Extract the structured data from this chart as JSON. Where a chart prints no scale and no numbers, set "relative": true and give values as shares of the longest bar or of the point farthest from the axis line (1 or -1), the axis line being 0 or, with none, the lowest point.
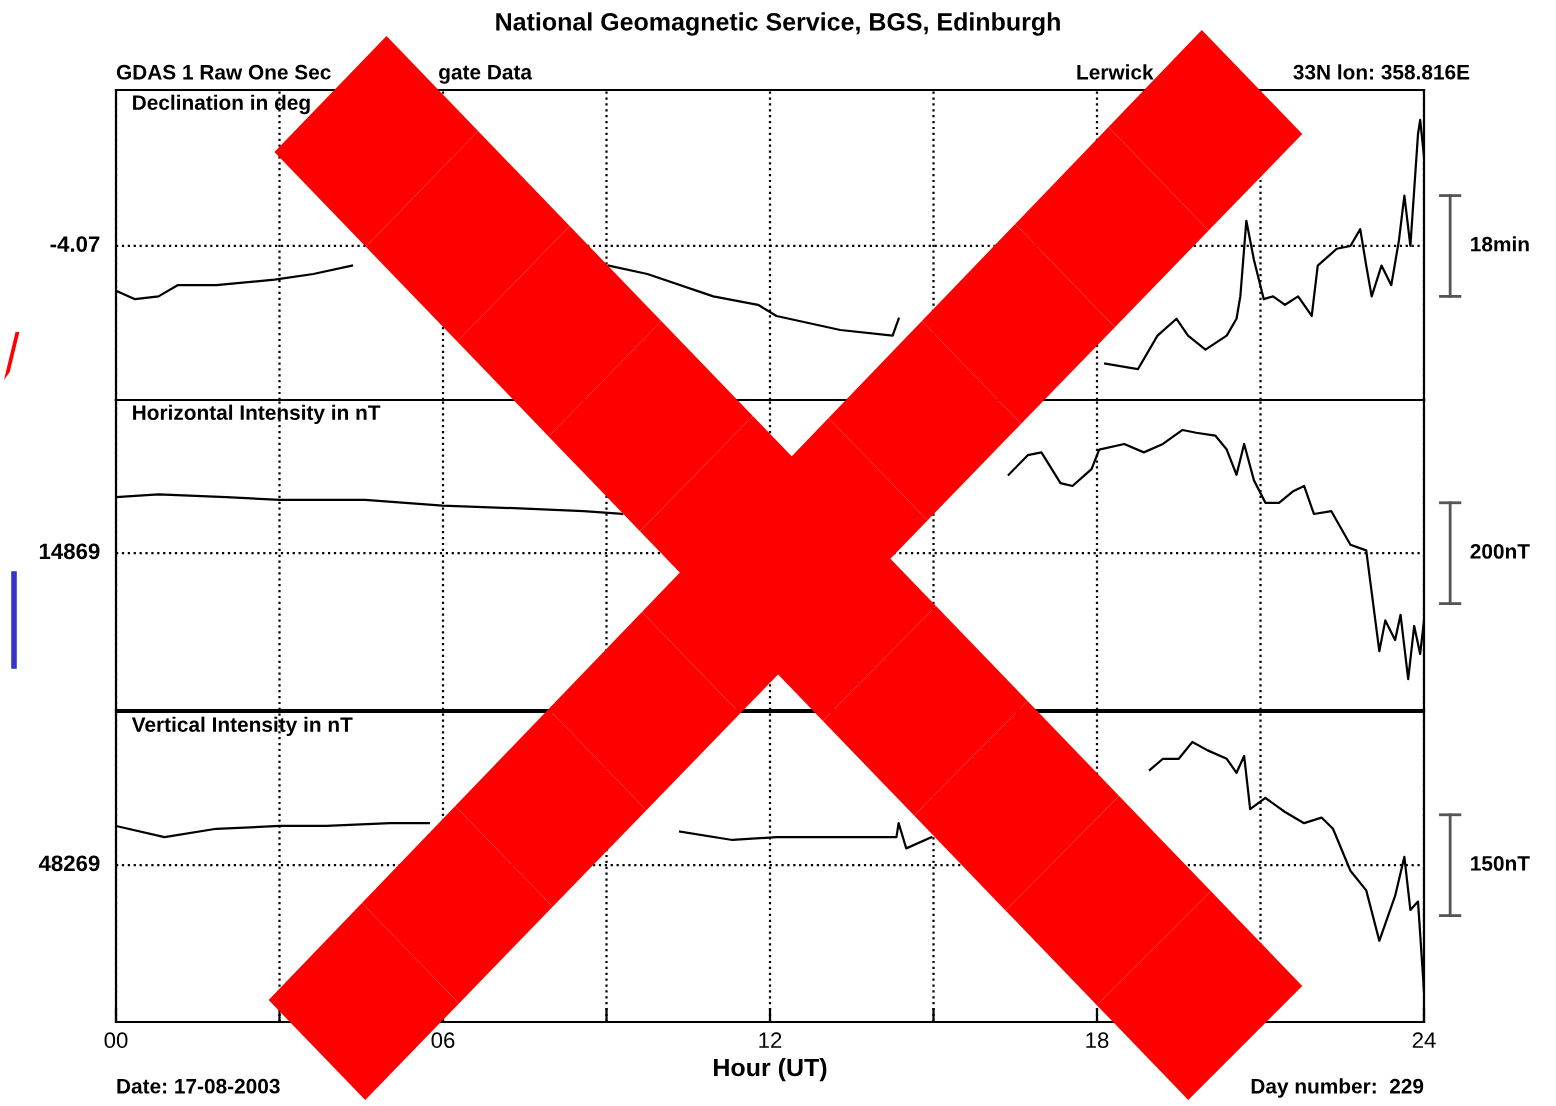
{
  "chart_data": [
    {
      "type": "line",
      "relative": true,
      "title": "National Geomagnetic Service, BGS, Edinburgh",
      "ylabel": "Declination in deg",
      "annotations": [
        "18min",
        "-4.07",
        "GDAS 1 Raw One Sec",
        "gate Data",
        "Lerwick",
        "33N lon: 358.816E"
      ],
      "xlim": [
        0,
        24
      ],
      "xticks": [
        {
          "value": 0,
          "label": null
        },
        {
          "value": 3,
          "label": null
        },
        {
          "value": 6,
          "label": null
        },
        {
          "value": 9,
          "label": null
        },
        {
          "value": 12,
          "label": null
        },
        {
          "value": 15,
          "label": null
        },
        {
          "value": 18,
          "label": null
        },
        {
          "value": 21,
          "label": null
        },
        {
          "value": 24,
          "label": null
        }
      ],
      "tick_labels": false,
      "grid": "x",
      "legend": false,
      "ref_lines": [
        {
          "axis": "y",
          "value": 0.55,
          "color": "#000000",
          "line_style": "dotted"
        }
      ],
      "series": [
        {
          "color": "#000000",
          "x": [
            0,
            0.35,
            0.78,
            1.13,
            1.84,
            2.91,
            3.62,
            4.33,
            4.93,
            7,
            9.04,
            9.75,
            10.96,
            11.78,
            12.12,
            13.29,
            14.25,
            14.36,
            16,
            17.8,
            18.15,
            18.75,
            19.11,
            19.46,
            19.67,
            19.99,
            20.38,
            20.56,
            20.63,
            20.74,
            20.88,
            21.06,
            21.23,
            21.45,
            21.69,
            21.94,
            22.05,
            22.4,
            22.65,
            22.83,
            22.94,
            23.04,
            23.22,
            23.4,
            23.54,
            23.64,
            23.75,
            23.89,
            23.93,
            24
          ],
          "values": [
            0.39,
            0.36,
            0.37,
            0.41,
            0.41,
            0.43,
            0.45,
            0.48,
            null,
            null,
            0.48,
            0.45,
            0.37,
            0.34,
            0.3,
            0.25,
            0.23,
            0.29,
            null,
            null,
            0.13,
            0.11,
            0.23,
            0.29,
            0.23,
            0.18,
            0.23,
            0.29,
            0.37,
            0.64,
            0.5,
            0.36,
            0.37,
            0.34,
            0.37,
            0.3,
            0.48,
            0.54,
            0.55,
            0.61,
            0.48,
            0.37,
            0.48,
            0.41,
            0.57,
            0.73,
            0.55,
            0.95,
            1,
            0.87
          ]
        }
      ]
    },
    {
      "type": "line",
      "relative": true,
      "ylabel": "Horizontal Intensity in nT",
      "annotations": [
        "200nT",
        "14869"
      ],
      "xlim": [
        0,
        24
      ],
      "xticks": [
        {
          "value": 0,
          "label": null
        },
        {
          "value": 3,
          "label": null
        },
        {
          "value": 6,
          "label": null
        },
        {
          "value": 9,
          "label": null
        },
        {
          "value": 12,
          "label": null
        },
        {
          "value": 15,
          "label": null
        },
        {
          "value": 18,
          "label": null
        },
        {
          "value": 21,
          "label": null
        },
        {
          "value": 24,
          "label": null
        }
      ],
      "tick_labels": false,
      "grid": "x",
      "legend": false,
      "ref_lines": [
        {
          "axis": "y",
          "value": 0.56,
          "color": "#000000",
          "line_style": "dotted"
        }
      ],
      "series": [
        {
          "color": "#000000",
          "x": [
            0,
            0.78,
            2.02,
            3.01,
            4.57,
            5.99,
            7.41,
            8.58,
            9.29,
            12,
            16.38,
            16.73,
            16.98,
            17.33,
            17.55,
            17.9,
            18.04,
            18.5,
            18.86,
            19.21,
            19.57,
            19.82,
            20.17,
            20.38,
            20.56,
            20.7,
            20.88,
            21.09,
            21.34,
            21.59,
            21.8,
            21.98,
            22.3,
            22.65,
            22.94,
            23.18,
            23.29,
            23.47,
            23.57,
            23.71,
            23.82,
            23.93,
            24
          ],
          "values": [
            0.76,
            0.77,
            0.76,
            0.75,
            0.75,
            0.73,
            0.72,
            0.71,
            0.7,
            null,
            0.84,
            0.91,
            0.92,
            0.81,
            0.8,
            0.86,
            0.93,
            0.95,
            0.92,
            0.95,
            1,
            0.99,
            0.98,
            0.93,
            0.84,
            0.95,
            0.82,
            0.74,
            0.74,
            0.78,
            0.8,
            0.7,
            0.71,
            0.59,
            0.57,
            0.21,
            0.32,
            0.25,
            0.34,
            0.11,
            0.3,
            0.2,
            0.32
          ]
        }
      ]
    },
    {
      "type": "line",
      "relative": true,
      "ylabel": "Vertical Intensity in nT",
      "xlabel": "Hour (UT)",
      "annotations": [
        "150nT",
        "48269",
        "Date: 17-08-2003",
        "Day number:  229"
      ],
      "xlim": [
        0,
        24
      ],
      "xticks": [
        {
          "value": 0,
          "label": "00"
        },
        {
          "value": 3,
          "label": null
        },
        {
          "value": 6,
          "label": "06"
        },
        {
          "value": 9,
          "label": null
        },
        {
          "value": 12,
          "label": "12"
        },
        {
          "value": 15,
          "label": null
        },
        {
          "value": 18,
          "label": "18"
        },
        {
          "value": 21,
          "label": null
        },
        {
          "value": 24,
          "label": "24"
        }
      ],
      "tick_labels": "x",
      "grid": "x",
      "legend": false,
      "ref_lines": [
        {
          "axis": "y",
          "value": 0.56,
          "color": "#000000",
          "line_style": "dotted"
        }
      ],
      "series": [
        {
          "color": "#000000",
          "x": [
            0,
            0.89,
            1.84,
            3.01,
            3.86,
            5.03,
            5.74,
            8,
            10.35,
            11.31,
            12.12,
            13.29,
            14.32,
            14.36,
            14.5,
            14.96,
            16.5,
            18.97,
            19.21,
            19.5,
            19.75,
            20.03,
            20.38,
            20.56,
            20.7,
            20.81,
            21.09,
            21.45,
            21.8,
            22.12,
            22.33,
            22.65,
            22.94,
            23.18,
            23.47,
            23.64,
            23.75,
            23.89,
            24
          ],
          "values": [
            0.7,
            0.66,
            0.69,
            0.7,
            0.7,
            0.71,
            0.71,
            null,
            0.68,
            0.65,
            0.66,
            0.66,
            0.66,
            0.71,
            0.62,
            0.66,
            null,
            0.9,
            0.94,
            0.94,
            1,
            0.97,
            0.94,
            0.89,
            0.95,
            0.76,
            0.8,
            0.75,
            0.71,
            0.73,
            0.69,
            0.54,
            0.47,
            0.29,
            0.45,
            0.59,
            0.4,
            0.43,
            0.11
          ]
        }
      ]
    }
  ]
}
